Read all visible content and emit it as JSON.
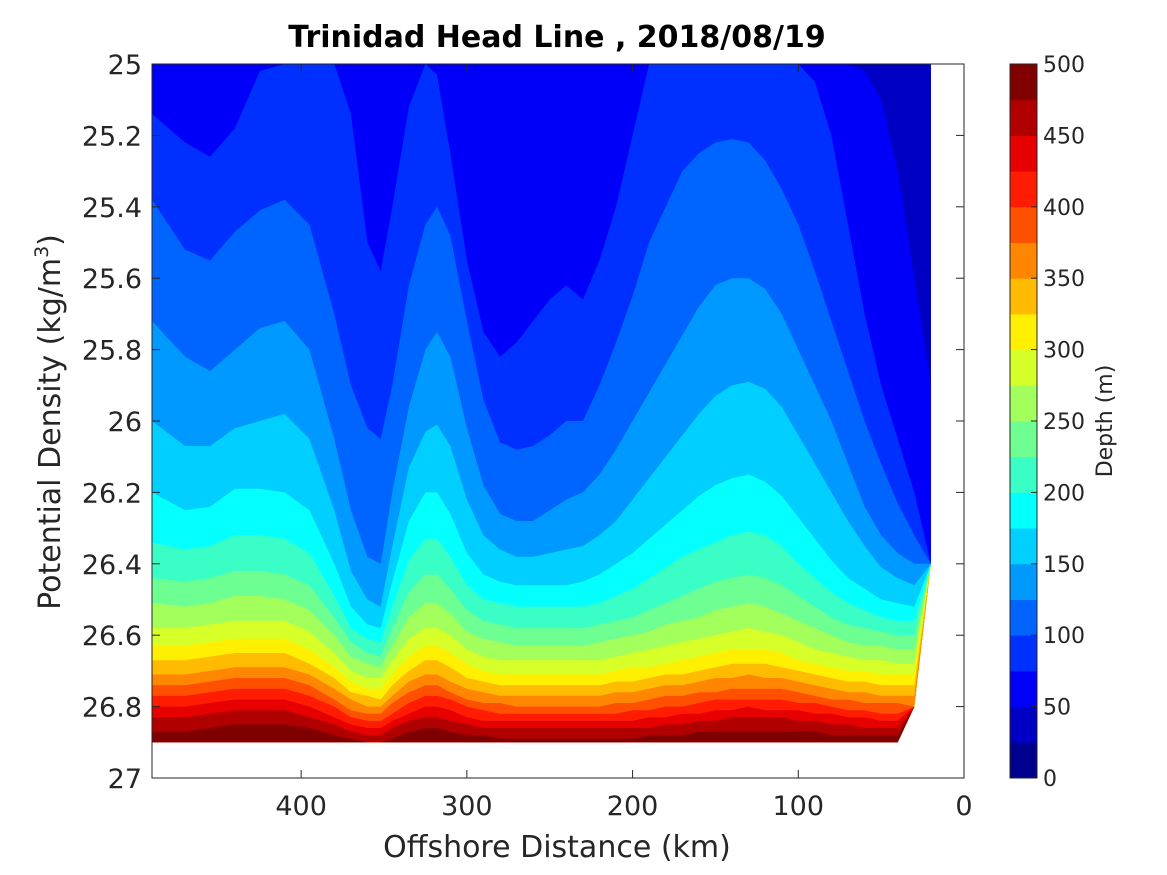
{
  "chart_data": {
    "type": "contour",
    "title": "Trinidad Head Line , 2018/08/19",
    "xlabel": "Offshore Distance (km)",
    "ylabel_main": "Potential Density (kg/m",
    "ylabel_sup": "3",
    "ylabel_close": ")",
    "xlim": [
      490,
      0
    ],
    "ylim": [
      25,
      27
    ],
    "y_reversed": true,
    "x_ticks": [
      "400",
      "300",
      "200",
      "100",
      "0"
    ],
    "x_tick_values": [
      400,
      300,
      200,
      100,
      0
    ],
    "y_ticks": [
      "25",
      "25.2",
      "25.4",
      "25.6",
      "25.8",
      "26",
      "26.2",
      "26.4",
      "26.6",
      "26.8",
      "27"
    ],
    "y_tick_values": [
      25,
      25.2,
      25.4,
      25.6,
      25.8,
      26,
      26.2,
      26.4,
      26.6,
      26.8,
      27
    ],
    "colorbar": {
      "label": "Depth (m)",
      "range": [
        0,
        500
      ],
      "step": 25,
      "ticks": [
        "0",
        "50",
        "100",
        "150",
        "200",
        "250",
        "300",
        "350",
        "400",
        "450",
        "500"
      ],
      "tick_values": [
        0,
        50,
        100,
        150,
        200,
        250,
        300,
        350,
        400,
        450,
        500
      ]
    },
    "contour_levels": [
      25,
      50,
      75,
      100,
      125,
      150,
      175,
      200,
      225,
      250,
      275,
      300,
      325,
      350,
      375,
      400,
      425,
      450,
      475
    ],
    "profile_x": [
      490,
      470,
      455,
      440,
      425,
      410,
      395,
      380,
      370,
      360,
      352,
      345,
      335,
      325,
      318,
      310,
      300,
      290,
      280,
      270,
      260,
      250,
      240,
      230,
      220,
      210,
      200,
      190,
      180,
      170,
      160,
      150,
      140,
      130,
      120,
      110,
      100,
      90,
      80,
      70,
      60,
      50,
      40,
      30,
      20
    ],
    "isopycnal_depths": [
      {
        "depth": 25,
        "sigma": [
          25.0,
          25.0,
          25.0,
          25.0,
          25.0,
          25.0,
          25.0,
          25.0,
          25.0,
          25.0,
          25.0,
          25.0,
          25.0,
          25.0,
          25.0,
          25.0,
          25.0,
          25.0,
          25.0,
          25.0,
          25.0,
          25.0,
          25.11,
          25.1,
          25.0,
          25.0,
          25.0,
          25.0,
          25.0,
          25.0,
          25.0,
          25.0,
          25.0,
          25.0,
          25.0,
          25.0,
          25.0,
          25.0,
          25.0,
          25.0,
          25.0,
          25.0,
          25.0,
          25.0,
          25.0
        ]
      },
      {
        "depth": 50,
        "sigma": [
          25.0,
          25.0,
          25.0,
          25.0,
          25.0,
          25.0,
          25.0,
          25.0,
          25.0,
          25.0,
          25.0,
          25.0,
          25.0,
          25.0,
          25.0,
          25.0,
          25.0,
          25.0,
          25.0,
          25.0,
          25.0,
          25.0,
          25.0,
          25.0,
          25.0,
          25.0,
          25.0,
          25.0,
          25.0,
          25.0,
          25.0,
          25.0,
          25.0,
          25.0,
          25.0,
          25.0,
          25.0,
          25.0,
          25.0,
          25.0,
          25.02,
          25.1,
          25.3,
          25.6,
          25.9
        ]
      },
      {
        "depth": 75,
        "sigma": [
          25.14,
          25.22,
          25.26,
          25.18,
          25.02,
          25.0,
          25.0,
          25.0,
          25.14,
          25.5,
          25.58,
          25.4,
          25.12,
          25.0,
          25.03,
          25.25,
          25.55,
          25.75,
          25.82,
          25.78,
          25.72,
          25.66,
          25.62,
          25.66,
          25.55,
          25.4,
          25.2,
          25.0,
          25.0,
          25.0,
          25.0,
          25.0,
          25.0,
          25.0,
          25.0,
          25.0,
          25.0,
          25.05,
          25.2,
          25.45,
          25.7,
          25.9,
          26.05,
          26.2,
          26.4
        ]
      },
      {
        "depth": 100,
        "sigma": [
          25.38,
          25.52,
          25.55,
          25.47,
          25.41,
          25.38,
          25.45,
          25.7,
          25.9,
          26.02,
          26.05,
          25.9,
          25.62,
          25.45,
          25.4,
          25.48,
          25.72,
          25.94,
          26.06,
          26.08,
          26.07,
          26.04,
          26.0,
          26.0,
          25.9,
          25.78,
          25.65,
          25.5,
          25.4,
          25.3,
          25.25,
          25.22,
          25.21,
          25.22,
          25.27,
          25.35,
          25.45,
          25.58,
          25.72,
          25.86,
          26.0,
          26.12,
          26.23,
          26.32,
          26.42
        ]
      },
      {
        "depth": 125,
        "sigma": [
          25.72,
          25.82,
          25.86,
          25.8,
          25.74,
          25.72,
          25.8,
          26.05,
          26.25,
          26.38,
          26.4,
          26.2,
          25.96,
          25.8,
          25.75,
          25.82,
          26.02,
          26.18,
          26.26,
          26.28,
          26.28,
          26.25,
          26.22,
          26.2,
          26.15,
          26.08,
          26.0,
          25.92,
          25.84,
          25.76,
          25.68,
          25.62,
          25.6,
          25.6,
          25.63,
          25.7,
          25.8,
          25.9,
          26.0,
          26.12,
          26.24,
          26.32,
          26.37,
          26.4,
          26.43
        ]
      },
      {
        "depth": 150,
        "sigma": [
          26.0,
          26.07,
          26.07,
          26.02,
          26.0,
          25.98,
          26.05,
          26.25,
          26.42,
          26.5,
          26.52,
          26.35,
          26.13,
          26.03,
          26.01,
          26.07,
          26.22,
          26.32,
          26.36,
          26.38,
          26.38,
          26.37,
          26.36,
          26.35,
          26.32,
          26.28,
          26.22,
          26.16,
          26.1,
          26.04,
          25.98,
          25.93,
          25.9,
          25.89,
          25.91,
          25.96,
          26.04,
          26.12,
          26.2,
          26.28,
          26.35,
          26.41,
          26.44,
          26.46,
          26.47
        ]
      },
      {
        "depth": 175,
        "sigma": [
          26.2,
          26.25,
          26.24,
          26.19,
          26.19,
          26.2,
          26.25,
          26.4,
          26.52,
          26.57,
          26.58,
          26.45,
          26.28,
          26.2,
          26.2,
          26.26,
          26.37,
          26.43,
          26.45,
          26.46,
          26.46,
          26.46,
          26.46,
          26.45,
          26.43,
          26.4,
          26.37,
          26.33,
          26.29,
          26.25,
          26.21,
          26.18,
          26.16,
          26.15,
          26.17,
          26.21,
          26.27,
          26.33,
          26.39,
          26.44,
          26.47,
          26.5,
          26.51,
          26.52,
          26.52
        ]
      },
      {
        "depth": 200,
        "sigma": [
          26.34,
          26.36,
          26.35,
          26.32,
          26.32,
          26.33,
          26.37,
          26.49,
          26.58,
          26.61,
          26.62,
          26.52,
          26.39,
          26.33,
          26.33,
          26.38,
          26.46,
          26.5,
          26.51,
          26.52,
          26.52,
          26.52,
          26.52,
          26.52,
          26.51,
          26.49,
          26.47,
          26.44,
          26.41,
          26.38,
          26.36,
          26.34,
          26.32,
          26.31,
          26.32,
          26.35,
          26.4,
          26.44,
          26.48,
          26.51,
          26.53,
          26.55,
          26.56,
          26.56,
          26.56
        ]
      },
      {
        "depth": 225,
        "sigma": [
          26.44,
          26.45,
          26.44,
          26.42,
          26.42,
          26.43,
          26.46,
          26.55,
          26.62,
          26.65,
          26.66,
          26.58,
          26.48,
          26.43,
          26.43,
          26.47,
          26.53,
          26.56,
          26.57,
          26.58,
          26.58,
          26.58,
          26.58,
          26.58,
          26.57,
          26.56,
          26.55,
          26.53,
          26.51,
          26.49,
          26.47,
          26.45,
          26.44,
          26.43,
          26.44,
          26.46,
          26.49,
          26.52,
          26.55,
          26.57,
          26.58,
          26.59,
          26.6,
          26.6,
          26.6
        ]
      },
      {
        "depth": 250,
        "sigma": [
          26.51,
          26.52,
          26.51,
          26.49,
          26.49,
          26.5,
          26.53,
          26.6,
          26.66,
          26.68,
          26.69,
          26.63,
          26.55,
          26.51,
          26.51,
          26.54,
          26.59,
          26.61,
          26.62,
          26.63,
          26.63,
          26.63,
          26.63,
          26.63,
          26.62,
          26.61,
          26.6,
          26.59,
          26.57,
          26.56,
          26.55,
          26.53,
          26.52,
          26.51,
          26.52,
          26.54,
          26.56,
          26.58,
          26.6,
          26.62,
          26.63,
          26.63,
          26.64,
          26.64,
          26.64
        ]
      },
      {
        "depth": 275,
        "sigma": [
          26.58,
          26.58,
          26.57,
          26.56,
          26.56,
          26.56,
          26.59,
          26.65,
          26.7,
          26.72,
          26.72,
          26.67,
          26.61,
          26.58,
          26.58,
          26.6,
          26.64,
          26.66,
          26.67,
          26.67,
          26.67,
          26.67,
          26.67,
          26.67,
          26.67,
          26.66,
          26.65,
          26.64,
          26.63,
          26.62,
          26.61,
          26.6,
          26.59,
          26.58,
          26.59,
          26.6,
          26.62,
          26.64,
          26.65,
          26.66,
          26.67,
          26.67,
          26.68,
          26.68,
          26.68
        ]
      },
      {
        "depth": 300,
        "sigma": [
          26.63,
          26.63,
          26.62,
          26.61,
          26.61,
          26.61,
          26.64,
          26.69,
          26.73,
          26.75,
          26.75,
          26.71,
          26.66,
          26.63,
          26.63,
          26.65,
          26.68,
          26.7,
          26.71,
          26.71,
          26.71,
          26.71,
          26.71,
          26.71,
          26.71,
          26.7,
          26.69,
          26.69,
          26.68,
          26.67,
          26.66,
          26.65,
          26.64,
          26.64,
          26.64,
          26.65,
          26.67,
          26.68,
          26.69,
          26.7,
          26.7,
          26.71,
          26.71,
          26.71,
          26.71
        ]
      },
      {
        "depth": 325,
        "sigma": [
          26.67,
          26.67,
          26.66,
          26.65,
          26.65,
          26.65,
          26.68,
          26.72,
          26.76,
          26.77,
          26.78,
          26.74,
          26.7,
          26.67,
          26.67,
          26.69,
          26.72,
          26.73,
          26.74,
          26.74,
          26.74,
          26.74,
          26.74,
          26.74,
          26.74,
          26.73,
          26.73,
          26.72,
          26.71,
          26.71,
          26.7,
          26.69,
          26.68,
          26.68,
          26.68,
          26.69,
          26.7,
          26.71,
          26.72,
          26.73,
          26.73,
          26.74,
          26.74,
          26.74,
          26.74
        ]
      },
      {
        "depth": 350,
        "sigma": [
          26.71,
          26.71,
          26.7,
          26.69,
          26.69,
          26.69,
          26.71,
          26.75,
          26.78,
          26.8,
          26.8,
          26.77,
          26.73,
          26.71,
          26.71,
          26.73,
          26.75,
          26.76,
          26.77,
          26.77,
          26.77,
          26.77,
          26.77,
          26.77,
          26.77,
          26.76,
          26.76,
          26.75,
          26.74,
          26.74,
          26.73,
          26.72,
          26.72,
          26.71,
          26.72,
          26.72,
          26.73,
          26.74,
          26.75,
          26.76,
          26.76,
          26.77,
          26.77,
          26.77,
          26.77
        ]
      },
      {
        "depth": 375,
        "sigma": [
          26.74,
          26.74,
          26.73,
          26.72,
          26.72,
          26.72,
          26.74,
          26.78,
          26.81,
          26.82,
          26.82,
          26.79,
          26.76,
          26.74,
          26.74,
          26.76,
          26.78,
          26.79,
          26.79,
          26.8,
          26.8,
          26.8,
          26.8,
          26.8,
          26.8,
          26.79,
          26.79,
          26.78,
          26.77,
          26.77,
          26.76,
          26.76,
          26.75,
          26.75,
          26.75,
          26.75,
          26.76,
          26.77,
          26.78,
          26.78,
          26.79,
          26.79,
          26.79,
          26.8,
          26.8
        ]
      },
      {
        "depth": 400,
        "sigma": [
          26.77,
          26.77,
          26.76,
          26.75,
          26.75,
          26.75,
          26.77,
          26.8,
          26.83,
          26.84,
          26.84,
          26.82,
          26.79,
          26.77,
          26.77,
          26.78,
          26.8,
          26.81,
          26.82,
          26.82,
          26.82,
          26.82,
          26.82,
          26.82,
          26.82,
          26.82,
          26.81,
          26.81,
          26.8,
          26.8,
          26.79,
          26.78,
          26.78,
          26.78,
          26.78,
          26.78,
          26.79,
          26.79,
          26.8,
          26.81,
          26.81,
          26.82,
          26.82,
          26.82,
          26.82
        ]
      },
      {
        "depth": 425,
        "sigma": [
          26.8,
          26.8,
          26.79,
          26.78,
          26.78,
          26.78,
          26.8,
          26.83,
          26.85,
          26.86,
          26.86,
          26.84,
          26.82,
          26.8,
          26.8,
          26.81,
          26.83,
          26.84,
          26.84,
          26.84,
          26.84,
          26.84,
          26.84,
          26.84,
          26.84,
          26.84,
          26.84,
          26.83,
          26.83,
          26.82,
          26.82,
          26.81,
          26.81,
          26.8,
          26.81,
          26.81,
          26.81,
          26.82,
          26.82,
          26.83,
          26.83,
          26.84,
          26.84,
          26.84,
          26.84
        ]
      },
      {
        "depth": 450,
        "sigma": [
          26.83,
          26.83,
          26.82,
          26.81,
          26.81,
          26.81,
          26.83,
          26.85,
          26.87,
          26.88,
          26.88,
          26.86,
          26.84,
          26.83,
          26.83,
          26.84,
          26.85,
          26.86,
          26.86,
          26.86,
          26.86,
          26.86,
          26.86,
          26.86,
          26.86,
          26.86,
          26.86,
          26.86,
          26.85,
          26.85,
          26.84,
          26.84,
          26.83,
          26.83,
          26.83,
          26.83,
          26.84,
          26.84,
          26.85,
          26.85,
          26.86,
          26.86,
          26.86,
          26.86,
          26.86
        ]
      },
      {
        "depth": 475,
        "sigma": [
          26.87,
          26.87,
          26.86,
          26.85,
          26.85,
          26.85,
          26.86,
          26.88,
          26.89,
          26.9,
          26.9,
          26.89,
          26.87,
          26.86,
          26.86,
          26.87,
          26.88,
          26.88,
          26.89,
          26.89,
          26.89,
          26.89,
          26.89,
          26.89,
          26.89,
          26.89,
          26.89,
          26.88,
          26.88,
          26.88,
          26.87,
          26.87,
          26.87,
          26.87,
          26.87,
          26.87,
          26.87,
          26.87,
          26.88,
          26.88,
          26.88,
          26.88,
          26.88,
          26.88,
          26.88
        ]
      }
    ],
    "max_density_bound": [
      26.9,
      26.9,
      26.9,
      26.9,
      26.9,
      26.9,
      26.9,
      26.9,
      26.9,
      26.9,
      26.9,
      26.9,
      26.9,
      26.9,
      26.9,
      26.9,
      26.9,
      26.9,
      26.9,
      26.9,
      26.9,
      26.9,
      26.9,
      26.9,
      26.9,
      26.9,
      26.9,
      26.9,
      26.9,
      26.9,
      26.9,
      26.9,
      26.9,
      26.9,
      26.9,
      26.9,
      26.9,
      26.9,
      26.9,
      26.9,
      26.9,
      26.9,
      26.9,
      26.8,
      26.4
    ],
    "colormap": [
      "#00008f",
      "#0000c4",
      "#0000fa",
      "#0030ff",
      "#0064ff",
      "#0099ff",
      "#00cfff",
      "#04ffff",
      "#39ffc6",
      "#6dff92",
      "#a3ff5c",
      "#d7ff28",
      "#ffef00",
      "#ffbb00",
      "#ff8600",
      "#ff5000",
      "#ff1c00",
      "#e60000",
      "#b10000",
      "#800000"
    ]
  }
}
